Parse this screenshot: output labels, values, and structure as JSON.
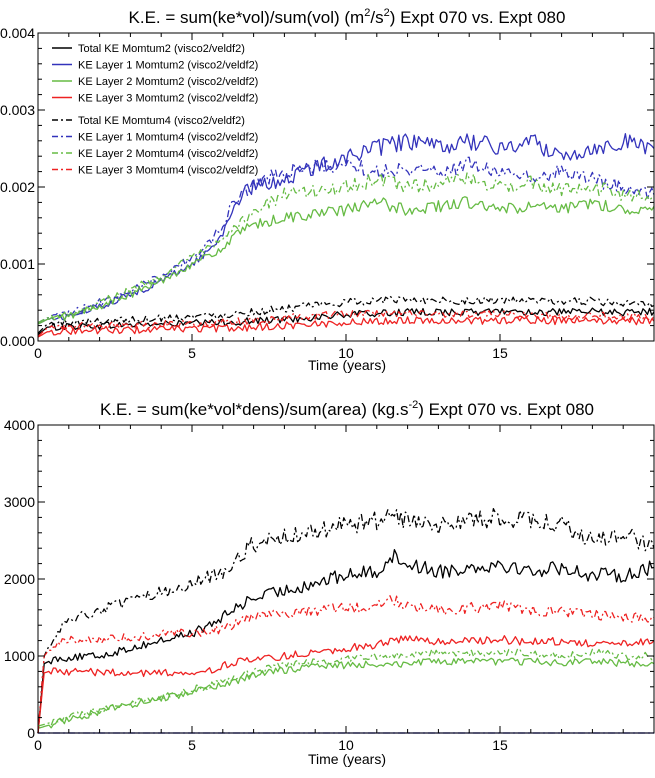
{
  "chart_data": [
    {
      "type": "line",
      "title": "K.E. = sum(ke*vol)/sum(vol) (m²/s²)  Expt 070 vs. Expt 080",
      "title_parts": {
        "pre": "K.E. = sum(ke*vol)/sum(vol) (m",
        "sup1": "2",
        "mid": "/s",
        "sup2": "2",
        "post": ")  Expt 070 vs. Expt 080"
      },
      "xlabel": "Time (years)",
      "ylabel": "",
      "xlim": [
        0,
        20
      ],
      "ylim": [
        0,
        0.004
      ],
      "xticks": [
        0,
        5,
        10,
        15
      ],
      "xtick_labels": [
        "0",
        "5",
        "10",
        "15"
      ],
      "yticks": [
        0,
        0.001,
        0.002,
        0.003,
        0.004
      ],
      "ytick_labels": [
        "0.000",
        "0.001",
        "0.002",
        "0.003",
        "0.004"
      ],
      "legend_position": "top-left",
      "series": [
        {
          "name": "Total KE Momtum2 (visco2/veldf2)",
          "color": "#000000",
          "dash": "solid",
          "x": [
            0,
            0.3,
            1,
            2,
            3,
            4,
            5,
            6,
            7,
            8,
            9,
            10,
            11,
            12,
            13,
            14,
            15,
            16,
            17,
            18,
            19,
            20
          ],
          "y": [
            8e-05,
            0.00018,
            0.00019,
            0.0002,
            0.00021,
            0.00022,
            0.00023,
            0.00024,
            0.00026,
            0.00028,
            0.00031,
            0.00034,
            0.00036,
            0.00037,
            0.00038,
            0.00037,
            0.00039,
            0.00038,
            0.00037,
            0.00038,
            0.00037,
            0.00038
          ]
        },
        {
          "name": "KE Layer 1 Momtum2 (visco2/veldf2)",
          "color": "#3333bb",
          "dash": "solid",
          "x": [
            0,
            0.3,
            1,
            2,
            3,
            4,
            5,
            5.5,
            6,
            6.3,
            6.6,
            7,
            8,
            9,
            10,
            11,
            12,
            13,
            14,
            15,
            16,
            17,
            18,
            19,
            20
          ],
          "y": [
            0.00022,
            0.00028,
            0.00032,
            0.00045,
            0.0006,
            0.00078,
            0.001,
            0.00115,
            0.0014,
            0.0017,
            0.0019,
            0.002,
            0.0021,
            0.00225,
            0.0024,
            0.0025,
            0.0026,
            0.0025,
            0.0026,
            0.0025,
            0.0026,
            0.0024,
            0.0025,
            0.0026,
            0.0025
          ]
        },
        {
          "name": "KE Layer 2 Momtum2 (visco2/veldf2)",
          "color": "#66bb44",
          "dash": "solid",
          "x": [
            0,
            0.3,
            1,
            2,
            3,
            4,
            5,
            6,
            6.5,
            7,
            8,
            9,
            10,
            11,
            12,
            13,
            14,
            15,
            16,
            17,
            18,
            19,
            20
          ],
          "y": [
            0.00022,
            0.00028,
            0.00032,
            0.00045,
            0.0006,
            0.00078,
            0.001,
            0.0012,
            0.0014,
            0.0015,
            0.0016,
            0.00165,
            0.0017,
            0.0018,
            0.0017,
            0.00175,
            0.0018,
            0.0017,
            0.00175,
            0.0017,
            0.0018,
            0.0017,
            0.00175
          ]
        },
        {
          "name": "KE Layer 3 Momtum2 (visco2/veldf2)",
          "color": "#ee2222",
          "dash": "solid",
          "x": [
            0,
            0.3,
            1,
            2,
            3,
            4,
            5,
            6,
            7,
            8,
            9,
            10,
            11,
            12,
            13,
            14,
            15,
            16,
            17,
            18,
            19,
            20
          ],
          "y": [
            5e-05,
            0.00012,
            0.00013,
            0.00014,
            0.00014,
            0.00015,
            0.00016,
            0.00016,
            0.00018,
            0.0002,
            0.00022,
            0.00024,
            0.00026,
            0.00027,
            0.00027,
            0.00026,
            0.00027,
            0.00027,
            0.00026,
            0.00027,
            0.00026,
            0.00026
          ]
        },
        {
          "name": "Total KE Momtum4 (visco2/veldf2)",
          "color": "#000000",
          "dash": "dashdot",
          "x": [
            0,
            0.3,
            1,
            2,
            3,
            4,
            5,
            6,
            7,
            8,
            9,
            10,
            11,
            12,
            13,
            14,
            15,
            16,
            17,
            18,
            19,
            20
          ],
          "y": [
            0.0001,
            0.00022,
            0.00024,
            0.00026,
            0.00028,
            0.0003,
            0.00032,
            0.00034,
            0.00038,
            0.00042,
            0.00046,
            0.0005,
            0.00053,
            0.00054,
            0.00053,
            0.00052,
            0.00053,
            0.00052,
            0.00051,
            0.00052,
            0.00048,
            0.00046
          ]
        },
        {
          "name": "KE Layer 1 Momtum4 (visco2/veldf2)",
          "color": "#3333bb",
          "dash": "dashdot",
          "x": [
            0,
            0.3,
            1,
            2,
            3,
            4,
            5,
            5.5,
            6,
            6.3,
            6.6,
            7,
            8,
            9,
            10,
            11,
            12,
            13,
            14,
            15,
            16,
            17,
            18,
            19,
            20
          ],
          "y": [
            0.00024,
            0.0003,
            0.00035,
            0.0005,
            0.00066,
            0.00085,
            0.00108,
            0.00125,
            0.0015,
            0.00175,
            0.0019,
            0.00205,
            0.0022,
            0.00225,
            0.0023,
            0.0022,
            0.00225,
            0.0022,
            0.0023,
            0.0022,
            0.0021,
            0.0022,
            0.0021,
            0.002,
            0.0019
          ]
        },
        {
          "name": "KE Layer 2 Momtum4 (visco2/veldf2)",
          "color": "#66bb44",
          "dash": "dashdot",
          "x": [
            0,
            0.3,
            1,
            2,
            3,
            4,
            5,
            6,
            6.5,
            7,
            8,
            9,
            10,
            11,
            12,
            13,
            14,
            15,
            16,
            17,
            18,
            19,
            20
          ],
          "y": [
            0.00024,
            0.0003,
            0.00035,
            0.0005,
            0.00066,
            0.00085,
            0.00108,
            0.0013,
            0.0015,
            0.0017,
            0.0019,
            0.00195,
            0.002,
            0.0021,
            0.002,
            0.00205,
            0.0021,
            0.002,
            0.00205,
            0.00195,
            0.002,
            0.0019,
            0.00185
          ]
        },
        {
          "name": "KE Layer 3 Momtum4 (visco2/veldf2)",
          "color": "#ee2222",
          "dash": "dashdot",
          "x": [
            0,
            0.3,
            1,
            2,
            3,
            4,
            5,
            6,
            7,
            8,
            9,
            10,
            11,
            12,
            13,
            14,
            15,
            16,
            17,
            18,
            19,
            20
          ],
          "y": [
            6e-05,
            0.00017,
            0.00019,
            0.0002,
            0.00021,
            0.00022,
            0.00023,
            0.00024,
            0.00027,
            0.0003,
            0.00033,
            0.00035,
            0.00036,
            0.00035,
            0.00036,
            0.00034,
            0.00035,
            0.00034,
            0.00033,
            0.00033,
            0.00032,
            0.00032
          ]
        }
      ]
    },
    {
      "type": "line",
      "title": "K.E. = sum(ke*vol*dens)/sum(area) (kg.s⁻²) Expt 070 vs. Expt 080",
      "title_parts": {
        "pre": "K.E. = sum(ke*vol*dens)/sum(area) (kg.s",
        "sup": "-2",
        "post": ") Expt 070 vs. Expt 080"
      },
      "xlabel": "Time (years)",
      "ylabel": "",
      "xlim": [
        0,
        20
      ],
      "ylim": [
        0,
        4000
      ],
      "xticks": [
        0,
        5,
        10,
        15
      ],
      "xtick_labels": [
        "0",
        "5",
        "10",
        "15"
      ],
      "yticks": [
        0,
        1000,
        2000,
        3000,
        4000
      ],
      "ytick_labels": [
        "0",
        "1000",
        "2000",
        "3000",
        "4000"
      ],
      "series": [
        {
          "name": "Total KE Momtum2",
          "color": "#000000",
          "dash": "solid",
          "x": [
            0,
            0.2,
            0.5,
            1,
            2,
            3,
            4,
            5,
            5.5,
            6,
            6.5,
            7,
            8,
            9,
            10,
            11,
            11.5,
            12,
            13,
            14,
            15,
            16,
            17,
            18,
            19,
            20
          ],
          "y": [
            0,
            900,
            960,
            980,
            1000,
            1100,
            1200,
            1300,
            1380,
            1500,
            1650,
            1750,
            1850,
            1950,
            2050,
            2100,
            2300,
            2200,
            2100,
            2150,
            2200,
            2100,
            2150,
            2050,
            2050,
            2150
          ]
        },
        {
          "name": "KE Layer 1 Momtum2",
          "color": "#3333bb",
          "dash": "solid",
          "x": [
            0,
            20
          ],
          "y": [
            0,
            0
          ]
        },
        {
          "name": "KE Layer 2 Momtum2",
          "color": "#66bb44",
          "dash": "solid",
          "x": [
            0,
            1,
            2,
            3,
            4,
            5,
            6,
            7,
            8,
            9,
            10,
            11,
            12,
            13,
            14,
            15,
            16,
            17,
            18,
            19,
            20
          ],
          "y": [
            60,
            180,
            280,
            370,
            450,
            530,
            620,
            750,
            820,
            870,
            880,
            900,
            900,
            930,
            920,
            930,
            930,
            910,
            940,
            900,
            900
          ]
        },
        {
          "name": "KE Layer 3 Momtum2",
          "color": "#ee2222",
          "dash": "solid",
          "x": [
            0,
            0.2,
            0.5,
            1,
            2,
            3,
            4,
            5,
            5.5,
            6,
            6.5,
            7,
            8,
            9,
            10,
            11,
            12,
            13,
            14,
            15,
            16,
            17,
            18,
            19,
            20
          ],
          "y": [
            0,
            780,
            820,
            800,
            790,
            780,
            780,
            800,
            790,
            880,
            930,
            940,
            1000,
            1050,
            1100,
            1150,
            1230,
            1180,
            1200,
            1220,
            1180,
            1200,
            1150,
            1150,
            1200
          ]
        },
        {
          "name": "Total KE Momtum4",
          "color": "#000000",
          "dash": "dashdot",
          "x": [
            0,
            0.2,
            0.5,
            1,
            2,
            3,
            4,
            5,
            6,
            6.5,
            7,
            8,
            9,
            10,
            11,
            11.5,
            12,
            13,
            14,
            15,
            16,
            17,
            18,
            19,
            20
          ],
          "y": [
            0,
            1000,
            1250,
            1450,
            1600,
            1700,
            1820,
            1950,
            2100,
            2300,
            2450,
            2550,
            2600,
            2700,
            2750,
            2850,
            2750,
            2700,
            2750,
            2800,
            2750,
            2700,
            2500,
            2600,
            2400
          ]
        },
        {
          "name": "KE Layer 1 Momtum4",
          "color": "#3333bb",
          "dash": "dashdot",
          "x": [
            0,
            20
          ],
          "y": [
            0,
            0
          ]
        },
        {
          "name": "KE Layer 2 Momtum4",
          "color": "#66bb44",
          "dash": "dashdot",
          "x": [
            0,
            1,
            2,
            3,
            4,
            5,
            6,
            7,
            8,
            9,
            10,
            11,
            12,
            13,
            14,
            15,
            16,
            17,
            18,
            19,
            20
          ],
          "y": [
            90,
            200,
            300,
            390,
            470,
            560,
            650,
            800,
            880,
            930,
            950,
            1000,
            1020,
            1050,
            1030,
            1050,
            1050,
            1000,
            1050,
            1000,
            1000
          ]
        },
        {
          "name": "KE Layer 3 Momtum4",
          "color": "#ee2222",
          "dash": "dashdot",
          "x": [
            0,
            0.2,
            0.5,
            1,
            2,
            3,
            4,
            5,
            6,
            6.5,
            7,
            8,
            9,
            10,
            11,
            11.5,
            12,
            13,
            14,
            15,
            16,
            17,
            18,
            19,
            20
          ],
          "y": [
            0,
            1000,
            1150,
            1200,
            1220,
            1250,
            1280,
            1300,
            1350,
            1450,
            1500,
            1550,
            1580,
            1620,
            1650,
            1750,
            1650,
            1600,
            1620,
            1650,
            1600,
            1580,
            1550,
            1500,
            1500
          ]
        }
      ]
    }
  ]
}
